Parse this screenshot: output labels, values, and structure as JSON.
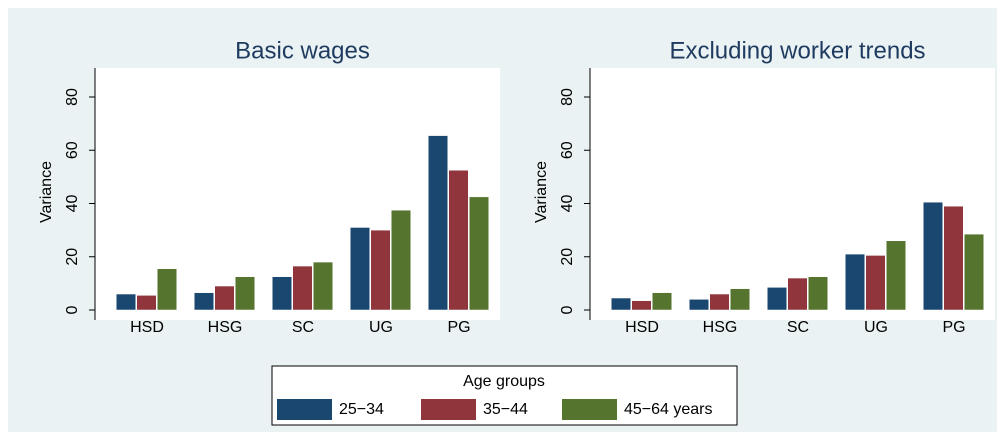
{
  "chart_data": [
    {
      "type": "bar",
      "title": "Basic wages",
      "y_label": "Variance",
      "categories": [
        "HSD",
        "HSG",
        "SC",
        "UG",
        "PG"
      ],
      "series": [
        {
          "name": "25−34",
          "color": "#1a476f",
          "values": [
            6,
            6.5,
            12.5,
            31,
            65.5
          ]
        },
        {
          "name": "35−44",
          "color": "#90353b",
          "values": [
            5.5,
            9,
            16.5,
            30,
            52.5
          ]
        },
        {
          "name": "45−64 years",
          "color": "#55752f",
          "values": [
            15.5,
            12.5,
            18,
            37.5,
            42.5
          ]
        }
      ],
      "ylim": [
        0,
        80
      ],
      "yticks": [
        0,
        20,
        40,
        60,
        80
      ],
      "grid": false,
      "legend_title": "Age groups"
    },
    {
      "type": "bar",
      "title": "Excluding worker trends",
      "y_label": "Variance",
      "categories": [
        "HSD",
        "HSG",
        "SC",
        "UG",
        "PG"
      ],
      "series": [
        {
          "name": "25−34",
          "color": "#1a476f",
          "values": [
            4.5,
            4,
            8.5,
            21,
            40.5
          ]
        },
        {
          "name": "35−44",
          "color": "#90353b",
          "values": [
            3.5,
            6,
            12,
            20.5,
            39
          ]
        },
        {
          "name": "45−64 years",
          "color": "#55752f",
          "values": [
            6.5,
            8,
            12.5,
            26,
            28.5
          ]
        }
      ],
      "ylim": [
        0,
        80
      ],
      "yticks": [
        0,
        20,
        40,
        60,
        80
      ],
      "grid": false
    }
  ]
}
